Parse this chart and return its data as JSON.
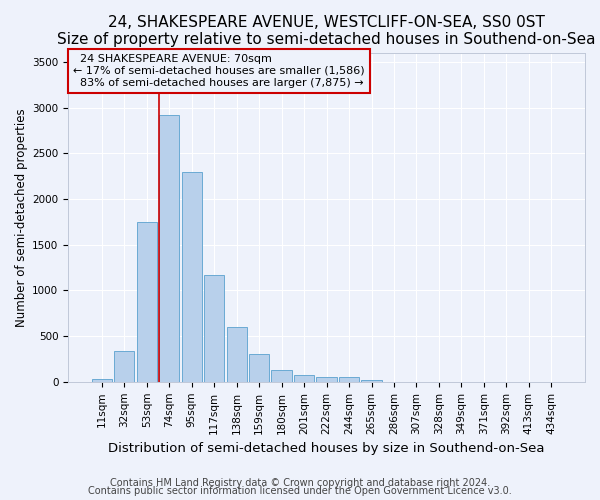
{
  "title1": "24, SHAKESPEARE AVENUE, WESTCLIFF-ON-SEA, SS0 0ST",
  "title2": "Size of property relative to semi-detached houses in Southend-on-Sea",
  "xlabel": "Distribution of semi-detached houses by size in Southend-on-Sea",
  "ylabel": "Number of semi-detached properties",
  "footnote1": "Contains HM Land Registry data © Crown copyright and database right 2024.",
  "footnote2": "Contains public sector information licensed under the Open Government Licence v3.0.",
  "bar_labels": [
    "11sqm",
    "32sqm",
    "53sqm",
    "74sqm",
    "95sqm",
    "117sqm",
    "138sqm",
    "159sqm",
    "180sqm",
    "201sqm",
    "222sqm",
    "244sqm",
    "265sqm",
    "286sqm",
    "307sqm",
    "328sqm",
    "349sqm",
    "371sqm",
    "392sqm",
    "413sqm",
    "434sqm"
  ],
  "bar_values": [
    30,
    340,
    1750,
    2920,
    2290,
    1170,
    600,
    300,
    130,
    70,
    55,
    50,
    20,
    0,
    0,
    0,
    0,
    0,
    0,
    0,
    0
  ],
  "bar_color": "#b8d0eb",
  "bar_edge_color": "#6aaad4",
  "property_label": "24 SHAKESPEARE AVENUE: 70sqm",
  "smaller_pct": 17,
  "smaller_count": 1586,
  "larger_pct": 83,
  "larger_count": 7875,
  "vline_color": "#cc0000",
  "vline_x_index": 2.81,
  "ylim": [
    0,
    3600
  ],
  "yticks": [
    0,
    500,
    1000,
    1500,
    2000,
    2500,
    3000,
    3500
  ],
  "background_color": "#eef2fb",
  "grid_color": "#ffffff",
  "title_fontsize": 11,
  "xlabel_fontsize": 9.5,
  "ylabel_fontsize": 8.5,
  "tick_fontsize": 7.5,
  "annotation_fontsize": 8,
  "footnote_fontsize": 7
}
